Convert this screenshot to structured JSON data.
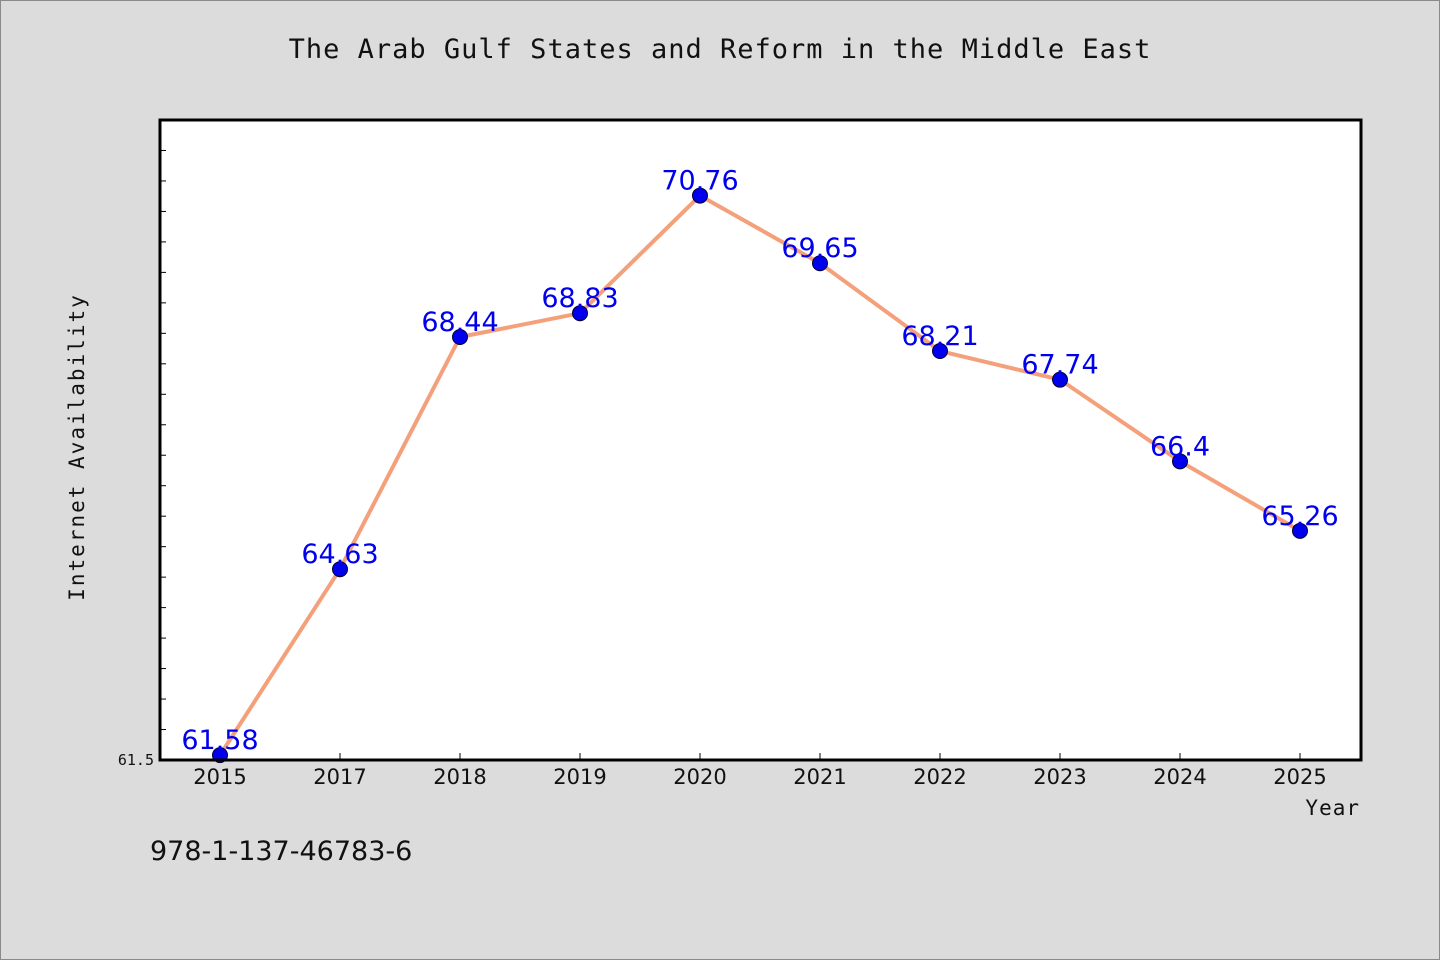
{
  "chart_data": {
    "type": "line",
    "title": "The Arab Gulf States and Reform in the Middle East",
    "xlabel": "Year",
    "ylabel": "Internet Availability",
    "categories": [
      "2015",
      "2017",
      "2018",
      "2019",
      "2020",
      "2021",
      "2022",
      "2023",
      "2024",
      "2025"
    ],
    "series": [
      {
        "values": [
          61.58,
          64.63,
          68.44,
          68.83,
          70.76,
          69.65,
          68.21,
          67.74,
          66.4,
          65.26
        ],
        "labels": [
          "61.58",
          "64.63",
          "68.44",
          "68.83",
          "70.76",
          "69.65",
          "68.21",
          "67.74",
          "66.4",
          "65.26"
        ],
        "line_color": "#f4a07a",
        "marker_color": "#0000ee",
        "label_color": "#0000ee"
      }
    ],
    "ylim": [
      61.5,
      72.0
    ],
    "y_tick_labels": [
      "61.5"
    ],
    "grid": false,
    "legend": "none"
  },
  "footer": {
    "isbn": "978-1-137-46783-6"
  }
}
